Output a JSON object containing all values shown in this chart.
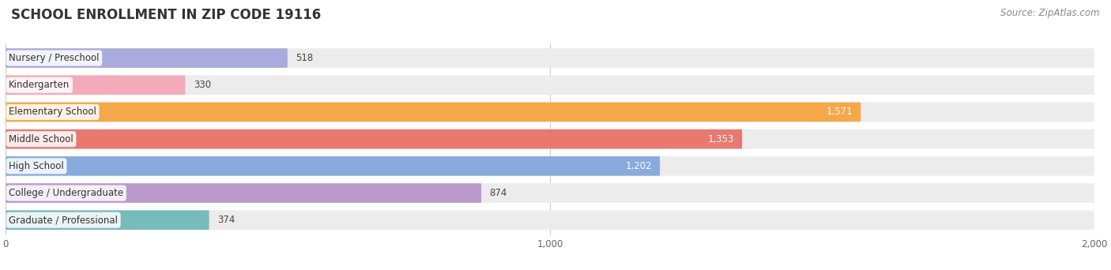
{
  "title": "SCHOOL ENROLLMENT IN ZIP CODE 19116",
  "source": "Source: ZipAtlas.com",
  "categories": [
    "Nursery / Preschool",
    "Kindergarten",
    "Elementary School",
    "Middle School",
    "High School",
    "College / Undergraduate",
    "Graduate / Professional"
  ],
  "values": [
    518,
    330,
    1571,
    1353,
    1202,
    874,
    374
  ],
  "colors": [
    "#aaaadd",
    "#f5aabb",
    "#f5a84a",
    "#e87870",
    "#88aadd",
    "#bb99cc",
    "#77bbbb"
  ],
  "bar_bg_color": "#ececec",
  "xlim": [
    0,
    2000
  ],
  "xticks": [
    0,
    1000,
    2000
  ],
  "title_fontsize": 12,
  "source_fontsize": 8.5,
  "label_fontsize": 8.5,
  "value_fontsize": 8.5,
  "background_color": "#ffffff",
  "value_inside_threshold": 900,
  "bar_height": 0.72,
  "bar_spacing": 1.0
}
